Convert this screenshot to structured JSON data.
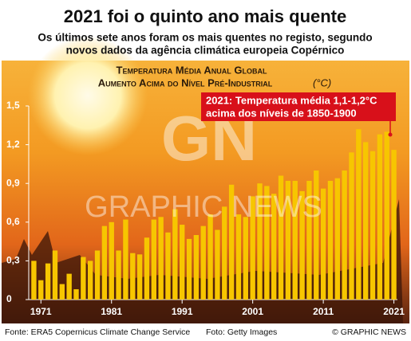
{
  "chart_data": {
    "type": "bar",
    "title": "2021 foi o quinto ano mais quente",
    "subtitle": [
      "Os últimos sete anos foram os mais quentes no registo, segundo",
      "novos dados da agência climática europeia Copérnico"
    ],
    "chart_title": [
      "Temperatura Média Anual Global",
      "Aumento Acima do Nível Pré-Industrial"
    ],
    "unit": "(°C)",
    "annotation": [
      "2021: Temperatura média 1,1-1,2°C",
      "acima dos níveis de 1850-1900"
    ],
    "watermark": [
      "GN",
      "GRAPHIC NEWS"
    ],
    "source": "Fonte: ERA5 Copernicus Climate Change Service",
    "photo_credit": "Foto: Getty Images",
    "copyright": "© GRAPHIC NEWS",
    "categories": [
      null,
      "1971",
      null,
      null,
      null,
      null,
      null,
      null,
      null,
      null,
      null,
      "1981",
      null,
      null,
      null,
      null,
      null,
      null,
      null,
      null,
      null,
      "1991",
      null,
      null,
      null,
      null,
      null,
      null,
      null,
      null,
      null,
      "2001",
      null,
      null,
      null,
      null,
      null,
      null,
      null,
      null,
      null,
      "2011",
      null,
      null,
      null,
      null,
      null,
      null,
      null,
      null,
      null,
      "2021"
    ],
    "values": [
      0.3,
      0.15,
      0.28,
      0.38,
      0.12,
      0.2,
      0.08,
      0.33,
      0.3,
      0.38,
      0.57,
      0.6,
      0.38,
      0.62,
      0.36,
      0.35,
      0.48,
      0.62,
      0.64,
      0.52,
      0.7,
      0.58,
      0.47,
      0.5,
      0.57,
      0.66,
      0.54,
      0.72,
      0.89,
      0.66,
      0.64,
      0.8,
      0.9,
      0.88,
      0.82,
      0.96,
      0.92,
      0.92,
      0.84,
      0.92,
      1.0,
      0.86,
      0.92,
      0.94,
      1.0,
      1.14,
      1.32,
      1.22,
      1.15,
      1.28,
      1.3,
      1.16
    ],
    "color": "#f7c600",
    "ylim": [
      0,
      1.5
    ],
    "yticks": [
      0,
      {
        "value": 0.3,
        "label": "0,3"
      },
      {
        "value": 0.6,
        "label": "0,6"
      },
      {
        "value": 0.9,
        "label": "0,9"
      },
      {
        "value": 1.2,
        "label": "1,2"
      },
      {
        "value": 1.5,
        "label": "1,5"
      }
    ],
    "grid": false
  }
}
